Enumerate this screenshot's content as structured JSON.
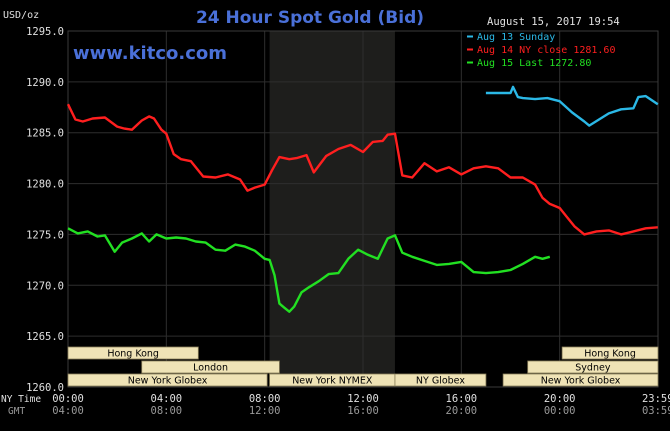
{
  "unit_label": "USD/oz",
  "title": "24 Hour Spot Gold (Bid)",
  "watermark": "www.kitco.com",
  "timestamp": "August 15, 2017 19:54",
  "colors": {
    "background": "#000000",
    "plot": "#000000",
    "highlight": "#1e1e1c",
    "grid": "#2e2e2e",
    "axis_text": "#e0e0e0",
    "title": "#4a70d8",
    "watermark": "#4a70d8",
    "sessions_fill": "#efe3b6",
    "sessions_text": "#000000"
  },
  "legend": [
    {
      "label": "Aug 13 Sunday",
      "color": "#2bb8e6"
    },
    {
      "label": "Aug 14 NY close 1281.60",
      "color": "#ff1f1f"
    },
    {
      "label": "Aug 15 Last 1272.80",
      "color": "#22e022"
    }
  ],
  "time_rows": {
    "ny_label": "NY Time",
    "gmt_label": "GMT",
    "ny": [
      "00:00",
      "04:00",
      "08:00",
      "12:00",
      "16:00",
      "20:00",
      "23:59"
    ],
    "gmt": [
      "04:00",
      "08:00",
      "12:00",
      "16:00",
      "20:00",
      "00:00",
      "03:59"
    ]
  },
  "sessions": [
    {
      "label": "Hong Kong",
      "row": 0,
      "start": 0.0,
      "end": 5.3
    },
    {
      "label": "London",
      "row": 1,
      "start": 3.0,
      "end": 8.6
    },
    {
      "label": "New York Globex",
      "row": 2,
      "start": 0.0,
      "end": 8.1
    },
    {
      "label": "New York NYMEX",
      "row": 2,
      "start": 8.2,
      "end": 13.3
    },
    {
      "label": "NY Globex",
      "row": 2,
      "start": 13.3,
      "end": 17.0
    },
    {
      "label": "Sydney",
      "row": 1,
      "start": 18.7,
      "end": 24.0
    },
    {
      "label": "Hong Kong",
      "row": 0,
      "start": 20.1,
      "end": 24.0
    },
    {
      "label": "New York Globex",
      "row": 2,
      "start": 17.7,
      "end": 24.0
    }
  ],
  "chart_data": {
    "type": "line",
    "title": "24 Hour Spot Gold (Bid)",
    "ylabel": "USD/oz",
    "xlabel": "NY Time / GMT",
    "xlim": [
      0,
      24
    ],
    "ylim": [
      1260,
      1295
    ],
    "yticks": [
      "1295.0",
      "1290.0",
      "1285.0",
      "1280.0",
      "1275.0",
      "1270.0",
      "1265.0",
      "1260.0"
    ],
    "xticks": [
      "00:00",
      "04:00",
      "08:00",
      "12:00",
      "16:00",
      "20:00",
      "23:59"
    ],
    "highlight_range_hours": [
      8.2,
      13.3
    ],
    "grid": true,
    "legend_position": "top-right",
    "series": [
      {
        "name": "Aug 13 Sunday",
        "color": "#2bb8e6",
        "x": [
          17.0,
          17.6,
          18.0,
          18.1,
          18.3,
          18.5,
          19.0,
          19.5,
          20.0,
          20.5,
          21.0,
          21.2,
          21.6,
          22.0,
          22.5,
          23.0,
          23.2,
          23.5,
          23.99
        ],
        "y": [
          1288.9,
          1288.9,
          1288.9,
          1289.5,
          1288.5,
          1288.4,
          1288.3,
          1288.4,
          1288.1,
          1287.0,
          1286.1,
          1285.7,
          1286.3,
          1286.9,
          1287.3,
          1287.4,
          1288.5,
          1288.6,
          1287.8
        ]
      },
      {
        "name": "Aug 14 NY close 1281.60",
        "color": "#ff1f1f",
        "x": [
          0.0,
          0.3,
          0.6,
          1.0,
          1.5,
          2.0,
          2.3,
          2.6,
          3.0,
          3.3,
          3.5,
          3.8,
          4.0,
          4.3,
          4.6,
          5.0,
          5.5,
          6.0,
          6.5,
          7.0,
          7.3,
          7.6,
          8.0,
          8.3,
          8.6,
          9.0,
          9.3,
          9.7,
          10.0,
          10.5,
          11.0,
          11.5,
          12.0,
          12.4,
          12.8,
          13.0,
          13.3,
          13.6,
          14.0,
          14.5,
          15.0,
          15.5,
          16.0,
          16.5,
          17.0,
          17.5,
          18.0,
          18.5,
          19.0,
          19.3,
          19.6,
          20.0,
          20.3,
          20.6,
          21.0,
          21.5,
          22.0,
          22.5,
          23.0,
          23.5,
          23.99
        ],
        "y": [
          1287.8,
          1286.3,
          1286.1,
          1286.4,
          1286.5,
          1285.6,
          1285.4,
          1285.3,
          1286.2,
          1286.6,
          1286.4,
          1285.3,
          1284.9,
          1282.9,
          1282.4,
          1282.2,
          1280.7,
          1280.6,
          1280.9,
          1280.4,
          1279.3,
          1279.6,
          1279.9,
          1281.3,
          1282.6,
          1282.4,
          1282.5,
          1282.8,
          1281.1,
          1282.7,
          1283.4,
          1283.8,
          1283.1,
          1284.1,
          1284.2,
          1284.8,
          1284.9,
          1280.8,
          1280.6,
          1282.0,
          1281.2,
          1281.6,
          1280.9,
          1281.5,
          1281.7,
          1281.5,
          1280.6,
          1280.6,
          1279.9,
          1278.6,
          1278.0,
          1277.6,
          1276.7,
          1275.8,
          1275.0,
          1275.3,
          1275.4,
          1275.0,
          1275.3,
          1275.6,
          1275.7
        ]
      },
      {
        "name": "Aug 15 Last 1272.80",
        "color": "#22e022",
        "x": [
          0.0,
          0.4,
          0.8,
          1.2,
          1.5,
          1.9,
          2.2,
          2.6,
          3.0,
          3.3,
          3.6,
          4.0,
          4.4,
          4.8,
          5.2,
          5.6,
          6.0,
          6.4,
          6.8,
          7.2,
          7.6,
          8.0,
          8.2,
          8.4,
          8.6,
          8.8,
          9.0,
          9.2,
          9.5,
          9.8,
          10.2,
          10.6,
          11.0,
          11.4,
          11.8,
          12.2,
          12.6,
          13.0,
          13.3,
          13.6,
          14.0,
          14.5,
          15.0,
          15.5,
          16.0,
          16.5,
          17.0,
          17.5,
          18.0,
          18.5,
          19.0,
          19.3,
          19.6
        ],
        "y": [
          1275.6,
          1275.1,
          1275.3,
          1274.8,
          1274.9,
          1273.3,
          1274.2,
          1274.6,
          1275.1,
          1274.3,
          1275.0,
          1274.6,
          1274.7,
          1274.6,
          1274.3,
          1274.2,
          1273.5,
          1273.4,
          1274.0,
          1273.8,
          1273.4,
          1272.6,
          1272.5,
          1271.0,
          1268.2,
          1267.8,
          1267.4,
          1267.9,
          1269.3,
          1269.8,
          1270.4,
          1271.1,
          1271.2,
          1272.6,
          1273.5,
          1273.0,
          1272.6,
          1274.6,
          1274.9,
          1273.2,
          1272.8,
          1272.4,
          1272.0,
          1272.1,
          1272.3,
          1271.3,
          1271.2,
          1271.3,
          1271.5,
          1272.1,
          1272.8,
          1272.6,
          1272.8
        ]
      }
    ]
  }
}
